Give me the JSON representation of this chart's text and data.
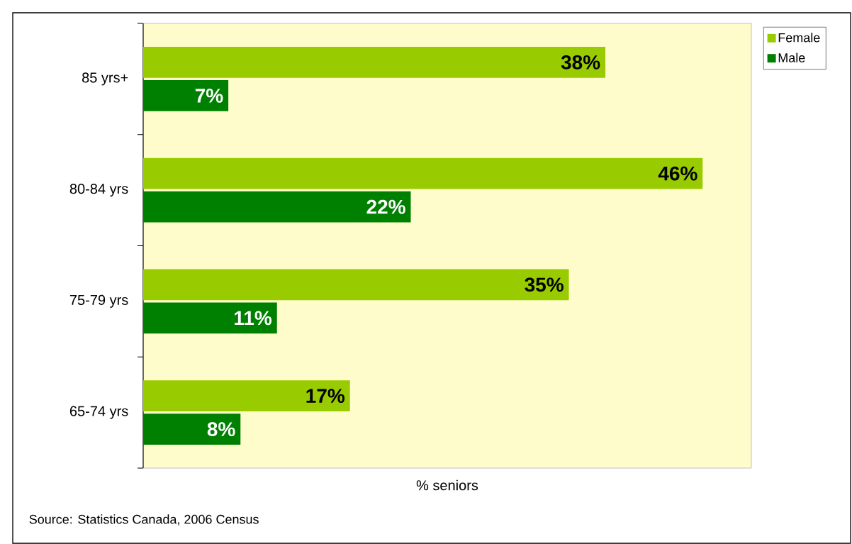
{
  "chart_data": {
    "type": "bar",
    "orientation": "horizontal",
    "xlabel": "% seniors",
    "categories": [
      "85 yrs+",
      "80-84 yrs",
      "75-79 yrs",
      "65-74 yrs"
    ],
    "series": [
      {
        "name": "Female",
        "color": "#99cc00",
        "values": [
          38,
          46,
          35,
          17
        ],
        "value_labels": [
          "38%",
          "46%",
          "35%",
          "17%"
        ]
      },
      {
        "name": "Male",
        "color": "#008000",
        "values": [
          7,
          22,
          11,
          8
        ],
        "value_labels": [
          "7%",
          "22%",
          "11%",
          "8%"
        ]
      }
    ],
    "legend": "top right",
    "annotations": [
      "Source: Statistics Canada, 2006 Census"
    ]
  }
}
